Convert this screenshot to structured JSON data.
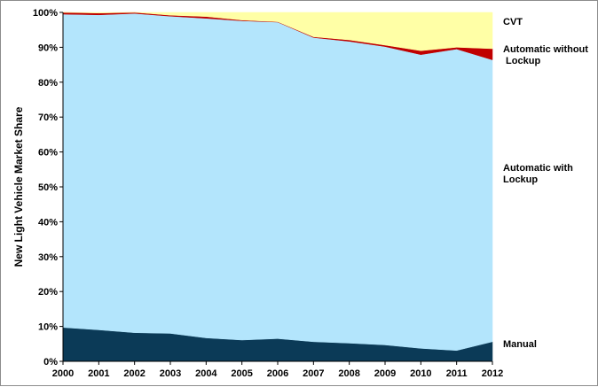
{
  "chart_data": {
    "type": "area",
    "stacked": true,
    "percent": true,
    "x": [
      "2000",
      "2001",
      "2002",
      "2003",
      "2004",
      "2005",
      "2006",
      "2007",
      "2008",
      "2009",
      "2010",
      "2011",
      "2012"
    ],
    "ylabel": "New Light Vehicle Market Share",
    "ylim": [
      0,
      100
    ],
    "yticks": [
      "0%",
      "10%",
      "20%",
      "30%",
      "40%",
      "50%",
      "60%",
      "70%",
      "80%",
      "90%",
      "100%"
    ],
    "grid": false,
    "series": [
      {
        "name": "Manual",
        "color": "#0b3a57",
        "values": [
          9.7,
          9.0,
          8.2,
          8.0,
          6.7,
          6.1,
          6.5,
          5.6,
          5.2,
          4.7,
          3.7,
          3.1,
          5.6
        ]
      },
      {
        "name": "Automatic with Lockup",
        "color": "#b3e5fc",
        "values": [
          89.8,
          90.3,
          91.5,
          90.9,
          91.6,
          91.5,
          90.7,
          87.2,
          86.5,
          85.5,
          84.2,
          86.4,
          80.8
        ]
      },
      {
        "name": "Automatic without Lockup",
        "color": "#c00000",
        "values": [
          0.5,
          0.5,
          0.3,
          0.3,
          0.5,
          0.2,
          0.1,
          0.2,
          0.4,
          0.4,
          1.1,
          0.5,
          3.2
        ]
      },
      {
        "name": "CVT",
        "color": "#ffffa6",
        "values": [
          0.0,
          0.2,
          0.0,
          0.8,
          1.2,
          2.2,
          2.7,
          7.0,
          7.9,
          9.4,
          11.0,
          10.0,
          10.4
        ]
      }
    ],
    "legend": [
      {
        "lines": [
          "CVT"
        ]
      },
      {
        "lines": [
          "Automatic without",
          " Lockup"
        ]
      },
      {
        "lines": [
          "Automatic with",
          "Lockup"
        ]
      },
      {
        "lines": [
          "Manual"
        ]
      }
    ]
  }
}
